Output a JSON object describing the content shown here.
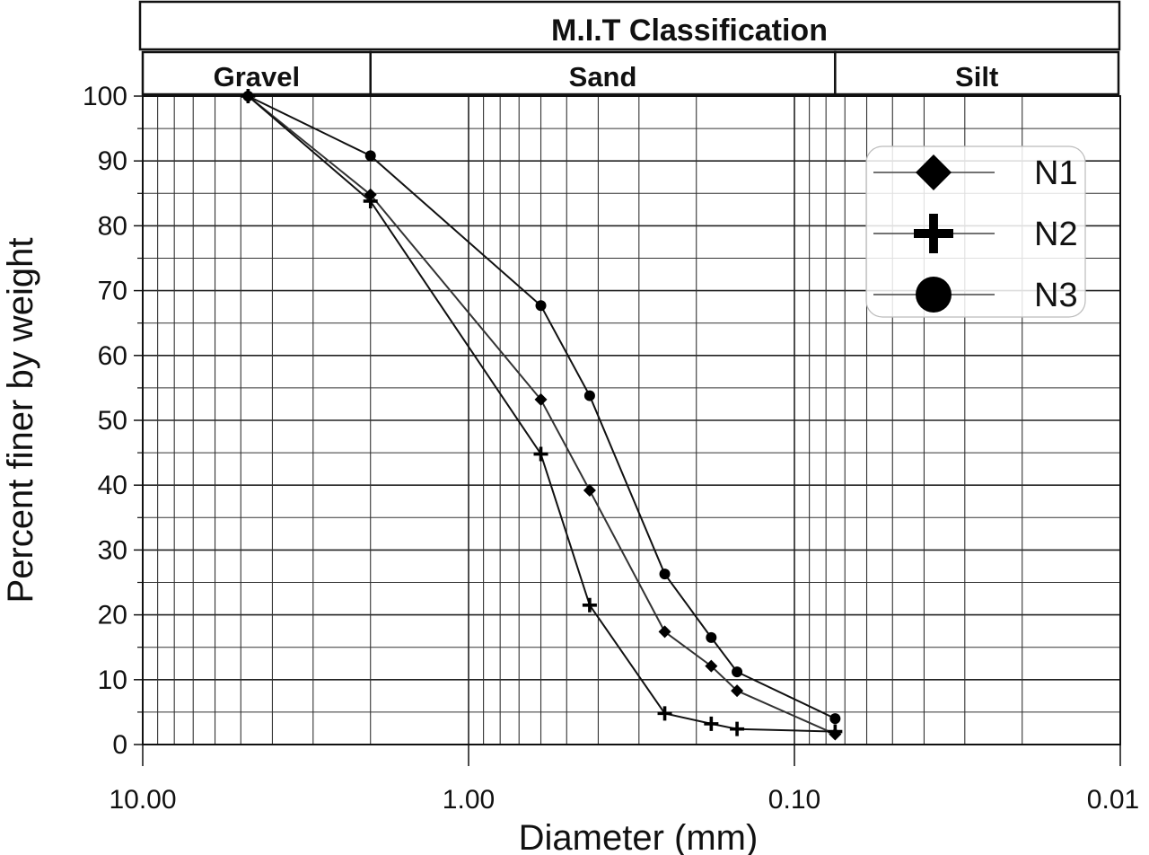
{
  "chart_data": {
    "type": "line",
    "xlabel": "Diameter (mm)",
    "ylabel": "Percent finer by weight",
    "x_scale": "log",
    "x_reversed": true,
    "xlim": [
      10,
      0.01
    ],
    "ylim": [
      0,
      100
    ],
    "x_ticks": [
      10,
      1,
      0.1,
      0.01
    ],
    "x_tick_labels": [
      "10.00",
      "1.00",
      "0.10",
      "0.01"
    ],
    "y_ticks": [
      0,
      10,
      20,
      30,
      40,
      50,
      60,
      70,
      80,
      90,
      100
    ],
    "grid": true,
    "legend_position": "top-right",
    "classification": {
      "title": "M.I.T Classification",
      "bands": [
        {
          "label": "Gravel",
          "from": 10,
          "to": 2
        },
        {
          "label": "Sand",
          "from": 2,
          "to": 0.075
        },
        {
          "label": "Silt",
          "from": 0.075,
          "to": 0.01
        }
      ]
    },
    "series": [
      {
        "name": "N1",
        "marker": "diamond",
        "color": "#333333",
        "points": [
          [
            4.75,
            100
          ],
          [
            2.0,
            84.8
          ],
          [
            0.6,
            53.2
          ],
          [
            0.425,
            39.2
          ],
          [
            0.25,
            17.4
          ],
          [
            0.18,
            12.1
          ],
          [
            0.15,
            8.3
          ],
          [
            0.075,
            1.6
          ]
        ]
      },
      {
        "name": "N2",
        "marker": "plus",
        "color": "#111111",
        "points": [
          [
            4.75,
            100
          ],
          [
            2.0,
            83.8
          ],
          [
            0.6,
            44.8
          ],
          [
            0.425,
            21.5
          ],
          [
            0.25,
            4.8
          ],
          [
            0.18,
            3.2
          ],
          [
            0.15,
            2.4
          ],
          [
            0.075,
            2.0
          ]
        ]
      },
      {
        "name": "N3",
        "marker": "circle",
        "color": "#111111",
        "points": [
          [
            4.75,
            100
          ],
          [
            2.0,
            90.8
          ],
          [
            0.6,
            67.7
          ],
          [
            0.425,
            53.8
          ],
          [
            0.25,
            26.3
          ],
          [
            0.18,
            16.5
          ],
          [
            0.15,
            11.2
          ],
          [
            0.075,
            4.0
          ]
        ]
      }
    ]
  }
}
